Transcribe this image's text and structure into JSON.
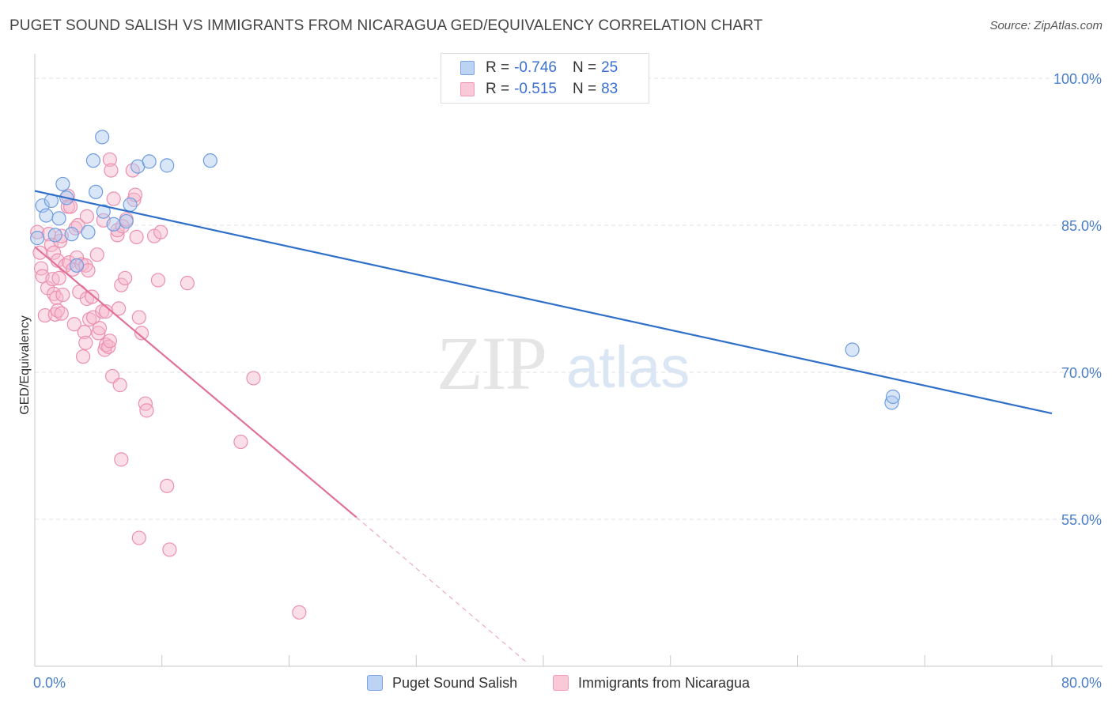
{
  "title": "PUGET SOUND SALISH VS IMMIGRANTS FROM NICARAGUA GED/EQUIVALENCY CORRELATION CHART",
  "source": "Source: ZipAtlas.com",
  "watermark": {
    "zip": "ZIP",
    "atlas": "atlas"
  },
  "legend": {
    "r_label": "R =",
    "n_label": "N =",
    "rows": [
      {
        "r": "-0.746",
        "n": "25"
      },
      {
        "r": "-0.515",
        "n": "83"
      }
    ]
  },
  "colors": {
    "blue_fill": "#a9c7f0",
    "blue_stroke": "#6f9de0",
    "blue_line": "#2f6fca",
    "pink_fill": "#f7b9cd",
    "pink_stroke": "#ec8fb0",
    "pink_line": "#e0729a",
    "tick_text": "#4a7ec9",
    "grid": "#e2e2e2"
  },
  "chart_data": {
    "type": "scatter",
    "title": "PUGET SOUND SALISH VS IMMIGRANTS FROM NICARAGUA GED/EQUIVALENCY CORRELATION CHART",
    "xlabel": "",
    "ylabel": "GED/Equivalency",
    "xlim": [
      0,
      80
    ],
    "ylim": [
      40,
      102.5
    ],
    "x_tick_labels": [
      "0.0%",
      "80.0%"
    ],
    "y_ticks": [
      100,
      85,
      70,
      55
    ],
    "y_tick_labels": [
      "100.0%",
      "85.0%",
      "70.0%",
      "55.0%"
    ],
    "grid": true,
    "legend_position": "bottom",
    "series": [
      {
        "name": "Puget Sound Salish",
        "r": -0.746,
        "n": 25,
        "points": [
          [
            0.2,
            83.7
          ],
          [
            0.6,
            87.0
          ],
          [
            0.9,
            86.0
          ],
          [
            1.3,
            87.5
          ],
          [
            1.6,
            84.0
          ],
          [
            1.9,
            85.7
          ],
          [
            2.2,
            89.2
          ],
          [
            2.5,
            87.8
          ],
          [
            2.9,
            84.1
          ],
          [
            3.3,
            80.9
          ],
          [
            4.2,
            84.3
          ],
          [
            4.6,
            91.6
          ],
          [
            4.8,
            88.4
          ],
          [
            5.3,
            94.0
          ],
          [
            5.4,
            86.4
          ],
          [
            6.2,
            85.1
          ],
          [
            7.2,
            85.4
          ],
          [
            7.5,
            87.1
          ],
          [
            8.1,
            91.0
          ],
          [
            9.0,
            91.5
          ],
          [
            10.4,
            91.1
          ],
          [
            13.8,
            91.6
          ],
          [
            64.3,
            72.3
          ],
          [
            67.4,
            66.9
          ],
          [
            67.5,
            67.5
          ]
        ],
        "trend": {
          "x": [
            0,
            80
          ],
          "y": [
            88.5,
            65.8
          ]
        }
      },
      {
        "name": "Immigrants from Nicaragua",
        "r": -0.515,
        "n": 83,
        "points": [
          [
            0.2,
            84.3
          ],
          [
            0.4,
            82.2
          ],
          [
            0.5,
            80.6
          ],
          [
            0.6,
            79.8
          ],
          [
            0.8,
            75.8
          ],
          [
            1.0,
            78.6
          ],
          [
            1.1,
            84.1
          ],
          [
            1.3,
            83.0
          ],
          [
            1.4,
            79.5
          ],
          [
            1.5,
            78.0
          ],
          [
            1.5,
            82.2
          ],
          [
            1.6,
            75.9
          ],
          [
            1.7,
            77.6
          ],
          [
            1.8,
            76.3
          ],
          [
            1.8,
            81.4
          ],
          [
            1.9,
            79.6
          ],
          [
            2.0,
            83.4
          ],
          [
            2.1,
            83.9
          ],
          [
            2.1,
            76.0
          ],
          [
            2.2,
            77.9
          ],
          [
            2.4,
            80.9
          ],
          [
            2.6,
            88.0
          ],
          [
            2.6,
            86.9
          ],
          [
            2.7,
            81.2
          ],
          [
            2.8,
            86.9
          ],
          [
            3.0,
            80.5
          ],
          [
            3.1,
            74.9
          ],
          [
            3.2,
            84.7
          ],
          [
            3.3,
            81.7
          ],
          [
            3.4,
            85.0
          ],
          [
            3.5,
            78.2
          ],
          [
            3.7,
            81.0
          ],
          [
            3.8,
            71.6
          ],
          [
            3.9,
            74.1
          ],
          [
            4.0,
            73.0
          ],
          [
            4.0,
            80.9
          ],
          [
            4.1,
            85.9
          ],
          [
            4.1,
            77.5
          ],
          [
            4.2,
            80.4
          ],
          [
            4.3,
            75.4
          ],
          [
            4.5,
            77.7
          ],
          [
            4.6,
            75.6
          ],
          [
            4.9,
            82.0
          ],
          [
            5.0,
            74.0
          ],
          [
            5.1,
            74.5
          ],
          [
            5.3,
            76.2
          ],
          [
            5.4,
            85.5
          ],
          [
            5.5,
            72.3
          ],
          [
            5.6,
            76.2
          ],
          [
            5.6,
            72.8
          ],
          [
            5.8,
            72.6
          ],
          [
            5.9,
            73.2
          ],
          [
            5.9,
            91.7
          ],
          [
            6.0,
            90.6
          ],
          [
            6.1,
            69.6
          ],
          [
            6.2,
            87.7
          ],
          [
            6.5,
            84.0
          ],
          [
            6.5,
            84.5
          ],
          [
            6.6,
            76.5
          ],
          [
            6.7,
            68.7
          ],
          [
            6.8,
            78.9
          ],
          [
            6.8,
            61.1
          ],
          [
            6.9,
            84.9
          ],
          [
            7.1,
            79.6
          ],
          [
            7.2,
            85.6
          ],
          [
            7.7,
            90.6
          ],
          [
            7.8,
            87.6
          ],
          [
            7.9,
            88.1
          ],
          [
            8.0,
            83.8
          ],
          [
            8.2,
            75.6
          ],
          [
            8.2,
            53.1
          ],
          [
            8.4,
            74.0
          ],
          [
            8.7,
            66.8
          ],
          [
            8.8,
            66.1
          ],
          [
            9.4,
            83.9
          ],
          [
            9.7,
            79.4
          ],
          [
            9.9,
            84.3
          ],
          [
            10.4,
            58.4
          ],
          [
            10.6,
            51.9
          ],
          [
            12.0,
            79.1
          ],
          [
            16.2,
            62.9
          ],
          [
            17.2,
            69.4
          ],
          [
            20.8,
            45.5
          ]
        ],
        "trend": {
          "x": [
            0,
            25.3
          ],
          "y": [
            82.8,
            55.2
          ]
        },
        "trend_dashed": {
          "x": [
            25.3,
            38.6
          ],
          "y": [
            55.2,
            40.5
          ]
        }
      }
    ]
  }
}
